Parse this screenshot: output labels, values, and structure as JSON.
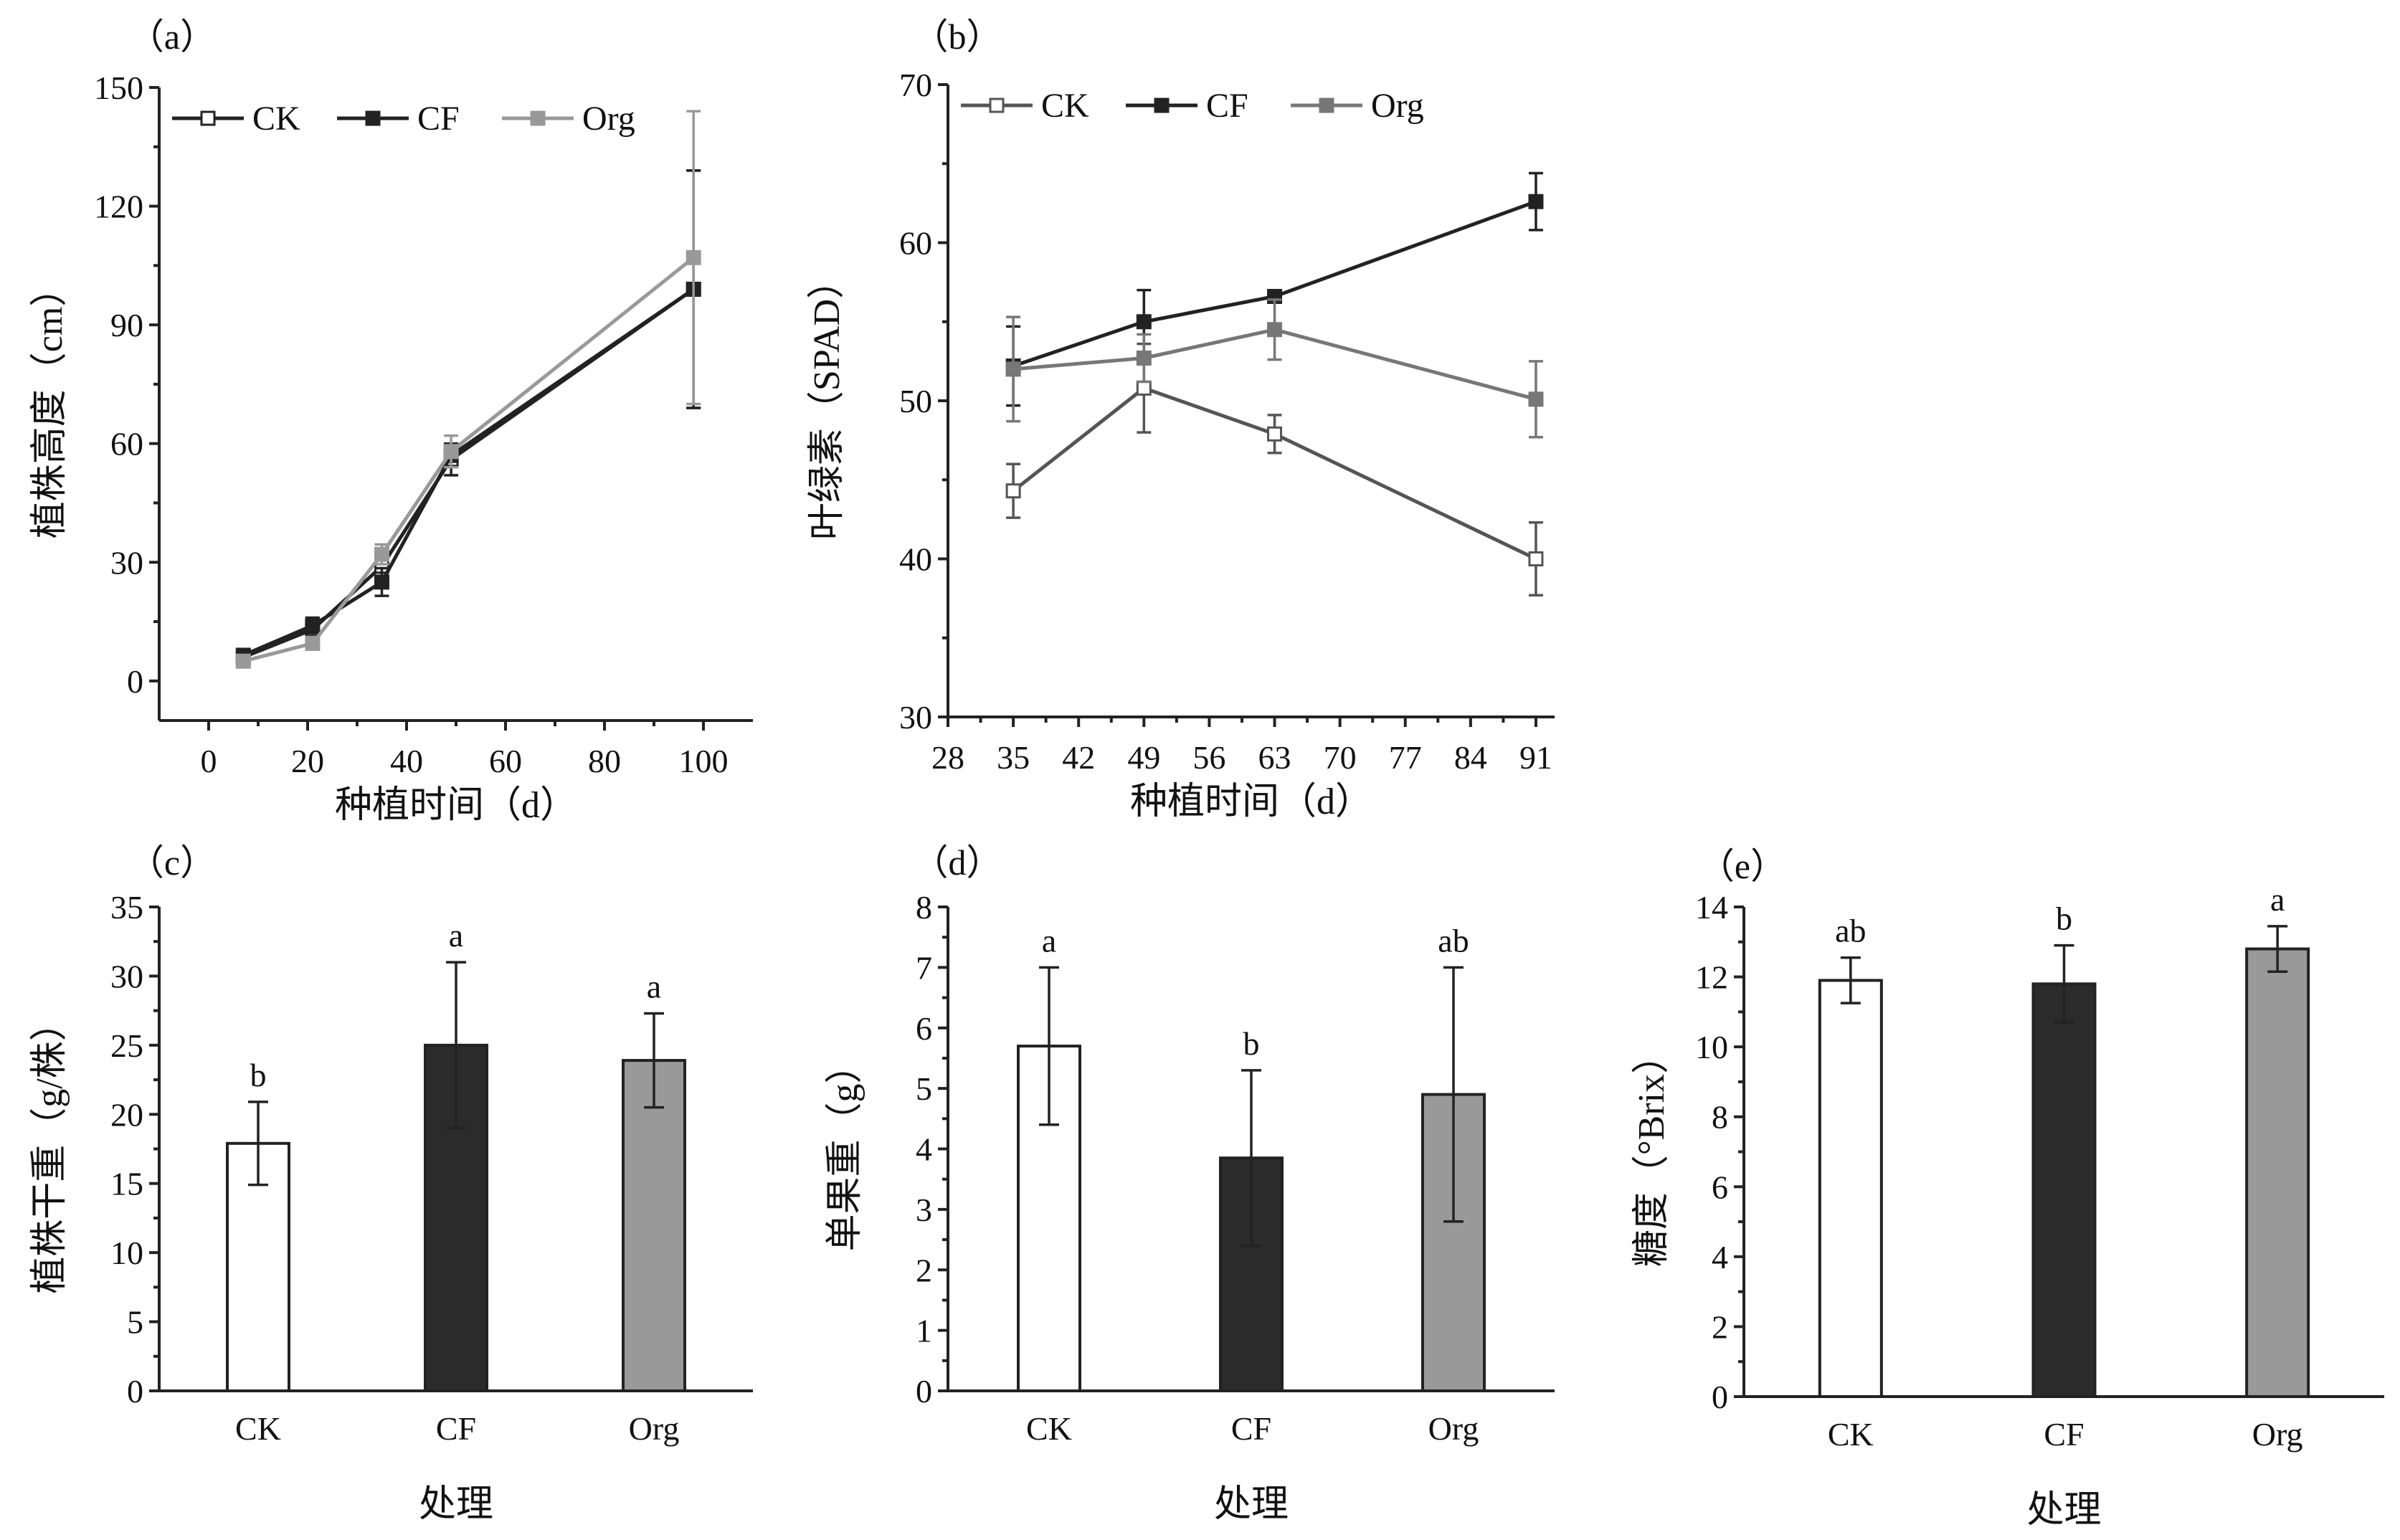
{
  "colors": {
    "CK": "#ffffff",
    "CF": "#2b2b2b",
    "Org": "#999999",
    "axis": "#222222"
  },
  "chart_data": [
    {
      "id": "a",
      "type": "line",
      "panel_label": "（a）",
      "xlabel": "种植时间（d）",
      "ylabel": "植株高度（cm）",
      "xlim": [
        -10,
        110
      ],
      "ylim": [
        -10,
        150
      ],
      "xticks": [
        0,
        20,
        40,
        60,
        80,
        100
      ],
      "yticks": [
        0,
        30,
        60,
        90,
        120,
        150
      ],
      "legend": [
        "CK",
        "CF",
        "Org"
      ],
      "legend_position": "top-left",
      "series": [
        {
          "name": "CK",
          "marker": "open-square",
          "color": "#222222",
          "points": [
            [
              7,
              6
            ],
            [
              21,
              13
            ],
            [
              35,
              29
            ],
            [
              49,
              56
            ],
            [
              98,
              99
            ]
          ],
          "errors": [
            1.5,
            2,
            3,
            4,
            30
          ]
        },
        {
          "name": "CF",
          "marker": "filled-square",
          "color": "#222222",
          "points": [
            [
              7,
              6.5
            ],
            [
              21,
              14
            ],
            [
              35,
              25
            ],
            [
              49,
              57
            ],
            [
              98,
              99
            ]
          ],
          "errors": [
            1.5,
            2,
            3.5,
            3,
            30
          ]
        },
        {
          "name": "Org",
          "marker": "filled-square",
          "color": "#999999",
          "points": [
            [
              7,
              5
            ],
            [
              21,
              9.5
            ],
            [
              35,
              32
            ],
            [
              49,
              58
            ],
            [
              98,
              107
            ]
          ],
          "errors": [
            1,
            1.5,
            2.5,
            4,
            37
          ]
        }
      ]
    },
    {
      "id": "b",
      "type": "line",
      "panel_label": "（b）",
      "xlabel": "种植时间（d）",
      "ylabel": "叶绿素（SPAD）",
      "xlim": [
        28,
        93
      ],
      "ylim": [
        30,
        70
      ],
      "xticks": [
        28,
        35,
        42,
        49,
        56,
        63,
        70,
        77,
        84,
        91
      ],
      "yticks": [
        30,
        40,
        50,
        60,
        70
      ],
      "legend": [
        "CK",
        "CF",
        "Org"
      ],
      "legend_position": "top-left",
      "series": [
        {
          "name": "CK",
          "marker": "open-square",
          "color": "#555555",
          "points": [
            [
              35,
              44.3
            ],
            [
              49,
              50.8
            ],
            [
              63,
              47.9
            ],
            [
              91,
              40
            ]
          ],
          "errors": [
            1.7,
            2.8,
            1.2,
            2.3
          ]
        },
        {
          "name": "CF",
          "marker": "filled-square",
          "color": "#222222",
          "points": [
            [
              35,
              52.2
            ],
            [
              49,
              55
            ],
            [
              63,
              56.6
            ],
            [
              91,
              62.6
            ]
          ],
          "errors": [
            2.5,
            2,
            0,
            1.8
          ]
        },
        {
          "name": "Org",
          "marker": "filled-square",
          "color": "#777777",
          "points": [
            [
              35,
              52
            ],
            [
              49,
              52.7
            ],
            [
              63,
              54.5
            ],
            [
              91,
              50.1
            ]
          ],
          "errors": [
            3.3,
            1.5,
            1.9,
            2.4
          ]
        }
      ]
    },
    {
      "id": "c",
      "type": "bar",
      "panel_label": "（c）",
      "xlabel": "处理",
      "ylabel": "植株干重（g/株）",
      "ylim": [
        0,
        35
      ],
      "yticks": [
        0,
        5,
        10,
        15,
        20,
        25,
        30,
        35
      ],
      "categories": [
        "CK",
        "CF",
        "Org"
      ],
      "values": [
        17.9,
        25,
        23.9
      ],
      "errors": [
        3,
        6,
        3.4
      ],
      "significance": [
        "b",
        "a",
        "a"
      ]
    },
    {
      "id": "d",
      "type": "bar",
      "panel_label": "（d）",
      "xlabel": "处理",
      "ylabel": "单果重（g）",
      "ylim": [
        0,
        8
      ],
      "yticks": [
        0,
        1,
        2,
        3,
        4,
        5,
        6,
        7,
        8
      ],
      "categories": [
        "CK",
        "CF",
        "Org"
      ],
      "values": [
        5.7,
        3.85,
        4.9
      ],
      "errors": [
        1.3,
        1.45,
        2.1
      ],
      "significance": [
        "a",
        "b",
        "ab"
      ]
    },
    {
      "id": "e",
      "type": "bar",
      "panel_label": "（e）",
      "xlabel": "处理",
      "ylabel": "糖度（°Brix）",
      "ylim": [
        0,
        14
      ],
      "yticks": [
        0,
        2,
        4,
        6,
        8,
        10,
        12,
        14
      ],
      "categories": [
        "CK",
        "CF",
        "Org"
      ],
      "values": [
        11.9,
        11.8,
        12.8
      ],
      "errors": [
        0.65,
        1.1,
        0.65
      ],
      "significance": [
        "ab",
        "b",
        "a"
      ]
    }
  ]
}
